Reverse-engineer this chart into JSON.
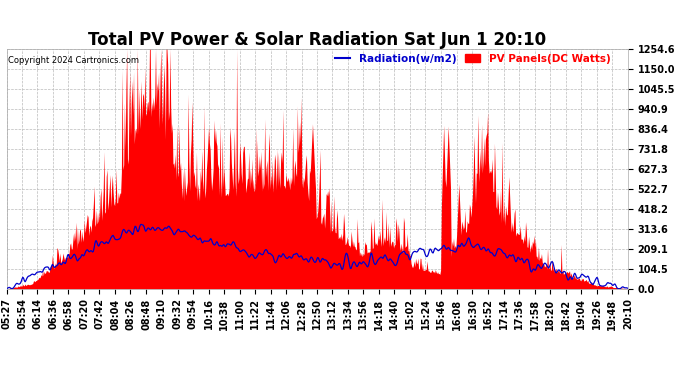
{
  "title": "Total PV Power & Solar Radiation Sat Jun 1 20:10",
  "copyright": "Copyright 2024 Cartronics.com",
  "legend_radiation": "Radiation(w/m2)",
  "legend_panels": "PV Panels(DC Watts)",
  "ylabel_values": [
    0.0,
    104.5,
    209.1,
    313.6,
    418.2,
    522.7,
    627.3,
    731.8,
    836.4,
    940.9,
    1045.5,
    1150.0,
    1254.6
  ],
  "ymax": 1254.6,
  "ymin": 0.0,
  "x_labels": [
    "05:27",
    "05:54",
    "06:14",
    "06:36",
    "06:58",
    "07:20",
    "07:42",
    "08:04",
    "08:26",
    "08:48",
    "09:10",
    "09:32",
    "09:54",
    "10:16",
    "10:38",
    "11:00",
    "11:22",
    "11:44",
    "12:06",
    "12:28",
    "12:50",
    "13:12",
    "13:34",
    "13:56",
    "14:18",
    "14:40",
    "15:02",
    "15:24",
    "15:46",
    "16:08",
    "16:30",
    "16:52",
    "17:14",
    "17:36",
    "17:58",
    "18:20",
    "18:42",
    "19:04",
    "19:26",
    "19:48",
    "20:10"
  ],
  "background_color": "#ffffff",
  "plot_bg_color": "#ffffff",
  "grid_color": "#bbbbbb",
  "title_color": "#000000",
  "copyright_color": "#000000",
  "radiation_color": "#0000cc",
  "pv_color": "#ff0000",
  "title_fontsize": 12,
  "label_fontsize": 7,
  "n_points": 820
}
